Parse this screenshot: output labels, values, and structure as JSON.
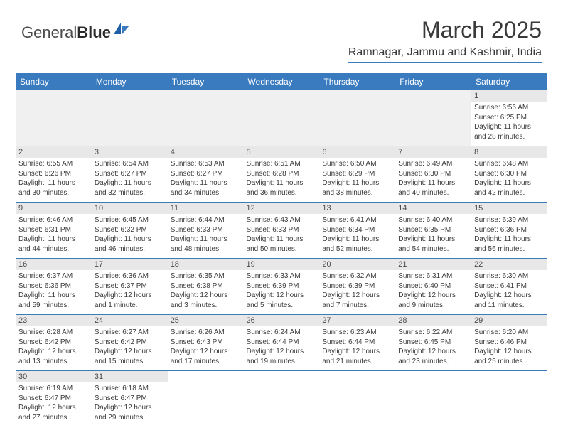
{
  "logo": {
    "part1": "General",
    "part2": "Blue"
  },
  "title": "March 2025",
  "location": "Ramnagar, Jammu and Kashmir, India",
  "colors": {
    "header_bg": "#3a7bbf",
    "header_text": "#ffffff",
    "daynum_bg": "#e8e8e8",
    "text": "#3a3a3a",
    "border": "#3a7bbf"
  },
  "weekdays": [
    "Sunday",
    "Monday",
    "Tuesday",
    "Wednesday",
    "Thursday",
    "Friday",
    "Saturday"
  ],
  "weeks": [
    [
      null,
      null,
      null,
      null,
      null,
      null,
      {
        "d": "1",
        "sr": "Sunrise: 6:56 AM",
        "ss": "Sunset: 6:25 PM",
        "dl1": "Daylight: 11 hours",
        "dl2": "and 28 minutes."
      }
    ],
    [
      {
        "d": "2",
        "sr": "Sunrise: 6:55 AM",
        "ss": "Sunset: 6:26 PM",
        "dl1": "Daylight: 11 hours",
        "dl2": "and 30 minutes."
      },
      {
        "d": "3",
        "sr": "Sunrise: 6:54 AM",
        "ss": "Sunset: 6:27 PM",
        "dl1": "Daylight: 11 hours",
        "dl2": "and 32 minutes."
      },
      {
        "d": "4",
        "sr": "Sunrise: 6:53 AM",
        "ss": "Sunset: 6:27 PM",
        "dl1": "Daylight: 11 hours",
        "dl2": "and 34 minutes."
      },
      {
        "d": "5",
        "sr": "Sunrise: 6:51 AM",
        "ss": "Sunset: 6:28 PM",
        "dl1": "Daylight: 11 hours",
        "dl2": "and 36 minutes."
      },
      {
        "d": "6",
        "sr": "Sunrise: 6:50 AM",
        "ss": "Sunset: 6:29 PM",
        "dl1": "Daylight: 11 hours",
        "dl2": "and 38 minutes."
      },
      {
        "d": "7",
        "sr": "Sunrise: 6:49 AM",
        "ss": "Sunset: 6:30 PM",
        "dl1": "Daylight: 11 hours",
        "dl2": "and 40 minutes."
      },
      {
        "d": "8",
        "sr": "Sunrise: 6:48 AM",
        "ss": "Sunset: 6:30 PM",
        "dl1": "Daylight: 11 hours",
        "dl2": "and 42 minutes."
      }
    ],
    [
      {
        "d": "9",
        "sr": "Sunrise: 6:46 AM",
        "ss": "Sunset: 6:31 PM",
        "dl1": "Daylight: 11 hours",
        "dl2": "and 44 minutes."
      },
      {
        "d": "10",
        "sr": "Sunrise: 6:45 AM",
        "ss": "Sunset: 6:32 PM",
        "dl1": "Daylight: 11 hours",
        "dl2": "and 46 minutes."
      },
      {
        "d": "11",
        "sr": "Sunrise: 6:44 AM",
        "ss": "Sunset: 6:33 PM",
        "dl1": "Daylight: 11 hours",
        "dl2": "and 48 minutes."
      },
      {
        "d": "12",
        "sr": "Sunrise: 6:43 AM",
        "ss": "Sunset: 6:33 PM",
        "dl1": "Daylight: 11 hours",
        "dl2": "and 50 minutes."
      },
      {
        "d": "13",
        "sr": "Sunrise: 6:41 AM",
        "ss": "Sunset: 6:34 PM",
        "dl1": "Daylight: 11 hours",
        "dl2": "and 52 minutes."
      },
      {
        "d": "14",
        "sr": "Sunrise: 6:40 AM",
        "ss": "Sunset: 6:35 PM",
        "dl1": "Daylight: 11 hours",
        "dl2": "and 54 minutes."
      },
      {
        "d": "15",
        "sr": "Sunrise: 6:39 AM",
        "ss": "Sunset: 6:36 PM",
        "dl1": "Daylight: 11 hours",
        "dl2": "and 56 minutes."
      }
    ],
    [
      {
        "d": "16",
        "sr": "Sunrise: 6:37 AM",
        "ss": "Sunset: 6:36 PM",
        "dl1": "Daylight: 11 hours",
        "dl2": "and 59 minutes."
      },
      {
        "d": "17",
        "sr": "Sunrise: 6:36 AM",
        "ss": "Sunset: 6:37 PM",
        "dl1": "Daylight: 12 hours",
        "dl2": "and 1 minute."
      },
      {
        "d": "18",
        "sr": "Sunrise: 6:35 AM",
        "ss": "Sunset: 6:38 PM",
        "dl1": "Daylight: 12 hours",
        "dl2": "and 3 minutes."
      },
      {
        "d": "19",
        "sr": "Sunrise: 6:33 AM",
        "ss": "Sunset: 6:39 PM",
        "dl1": "Daylight: 12 hours",
        "dl2": "and 5 minutes."
      },
      {
        "d": "20",
        "sr": "Sunrise: 6:32 AM",
        "ss": "Sunset: 6:39 PM",
        "dl1": "Daylight: 12 hours",
        "dl2": "and 7 minutes."
      },
      {
        "d": "21",
        "sr": "Sunrise: 6:31 AM",
        "ss": "Sunset: 6:40 PM",
        "dl1": "Daylight: 12 hours",
        "dl2": "and 9 minutes."
      },
      {
        "d": "22",
        "sr": "Sunrise: 6:30 AM",
        "ss": "Sunset: 6:41 PM",
        "dl1": "Daylight: 12 hours",
        "dl2": "and 11 minutes."
      }
    ],
    [
      {
        "d": "23",
        "sr": "Sunrise: 6:28 AM",
        "ss": "Sunset: 6:42 PM",
        "dl1": "Daylight: 12 hours",
        "dl2": "and 13 minutes."
      },
      {
        "d": "24",
        "sr": "Sunrise: 6:27 AM",
        "ss": "Sunset: 6:42 PM",
        "dl1": "Daylight: 12 hours",
        "dl2": "and 15 minutes."
      },
      {
        "d": "25",
        "sr": "Sunrise: 6:26 AM",
        "ss": "Sunset: 6:43 PM",
        "dl1": "Daylight: 12 hours",
        "dl2": "and 17 minutes."
      },
      {
        "d": "26",
        "sr": "Sunrise: 6:24 AM",
        "ss": "Sunset: 6:44 PM",
        "dl1": "Daylight: 12 hours",
        "dl2": "and 19 minutes."
      },
      {
        "d": "27",
        "sr": "Sunrise: 6:23 AM",
        "ss": "Sunset: 6:44 PM",
        "dl1": "Daylight: 12 hours",
        "dl2": "and 21 minutes."
      },
      {
        "d": "28",
        "sr": "Sunrise: 6:22 AM",
        "ss": "Sunset: 6:45 PM",
        "dl1": "Daylight: 12 hours",
        "dl2": "and 23 minutes."
      },
      {
        "d": "29",
        "sr": "Sunrise: 6:20 AM",
        "ss": "Sunset: 6:46 PM",
        "dl1": "Daylight: 12 hours",
        "dl2": "and 25 minutes."
      }
    ],
    [
      {
        "d": "30",
        "sr": "Sunrise: 6:19 AM",
        "ss": "Sunset: 6:47 PM",
        "dl1": "Daylight: 12 hours",
        "dl2": "and 27 minutes."
      },
      {
        "d": "31",
        "sr": "Sunrise: 6:18 AM",
        "ss": "Sunset: 6:47 PM",
        "dl1": "Daylight: 12 hours",
        "dl2": "and 29 minutes."
      },
      null,
      null,
      null,
      null,
      null
    ]
  ]
}
